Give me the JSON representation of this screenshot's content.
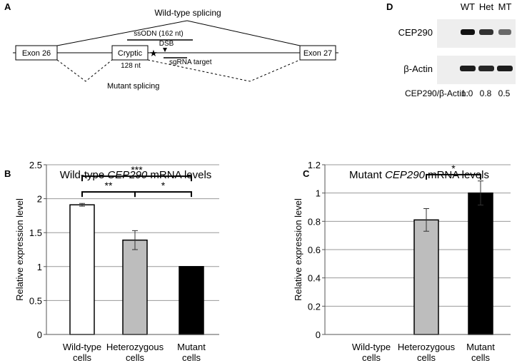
{
  "panel_labels": [
    "A",
    "B",
    "C",
    "D"
  ],
  "diagram": {
    "wild_type_splicing": "Wild-type splicing",
    "mutant_splicing": "Mutant splicing",
    "exon26": "Exon 26",
    "cryptic": "Cryptic",
    "exon27": "Exon 27",
    "ssodn": "ssODN (162 nt)",
    "dsb": "DSB",
    "sgrna": "sgRNA target",
    "cryptic_length": "128 nt",
    "star": "★"
  },
  "blot": {
    "lanes": [
      "WT",
      "Het",
      "MT"
    ],
    "rows": [
      "CEP290",
      "β-Actin"
    ],
    "ratio_label": "CEP290/β-Actin:",
    "ratios": [
      "1.0",
      "0.8",
      "0.5"
    ]
  },
  "chart_data": [
    {
      "type": "bar",
      "title_parts": [
        "Wild-type ",
        "CEP290",
        " mRNA levels"
      ],
      "ylabel": "Relative expression level",
      "categories": [
        [
          "Wild-type",
          "cells"
        ],
        [
          "Heterozygous",
          "cells"
        ],
        [
          "Mutant",
          "cells"
        ]
      ],
      "values": [
        1.91,
        1.39,
        1.0
      ],
      "errors": [
        0.02,
        0.14,
        0
      ],
      "colors": [
        "#ffffff",
        "#bdbdbd",
        "#000000"
      ],
      "ylim": [
        0,
        2.5
      ],
      "yticks": [
        0,
        0.5,
        1,
        1.5,
        2,
        2.5
      ],
      "grid": true,
      "annotations": [
        {
          "text": "**",
          "from": 0,
          "to": 1,
          "level": 2.1
        },
        {
          "text": "*",
          "from": 1,
          "to": 2,
          "level": 2.1
        },
        {
          "text": "***",
          "from": 0,
          "to": 2,
          "level": 2.33
        }
      ]
    },
    {
      "type": "bar",
      "title_parts": [
        "Mutant ",
        "CEP290",
        " mRNA levels"
      ],
      "ylabel": "Relative expression level",
      "categories": [
        [
          "Wild-type",
          "cells"
        ],
        [
          "Heterozygous",
          "cells"
        ],
        [
          "Mutant",
          "cells"
        ]
      ],
      "values": [
        0,
        0.81,
        1.0
      ],
      "errors": [
        0,
        0.08,
        0.085
      ],
      "colors": [
        "#ffffff",
        "#bdbdbd",
        "#000000"
      ],
      "ylim": [
        0,
        1.2
      ],
      "yticks": [
        0,
        0.2,
        0.4,
        0.6,
        0.8,
        1,
        1.2
      ],
      "grid": true,
      "annotations": [
        {
          "text": "*",
          "from": 1,
          "to": 2,
          "level": 1.13
        }
      ]
    }
  ]
}
